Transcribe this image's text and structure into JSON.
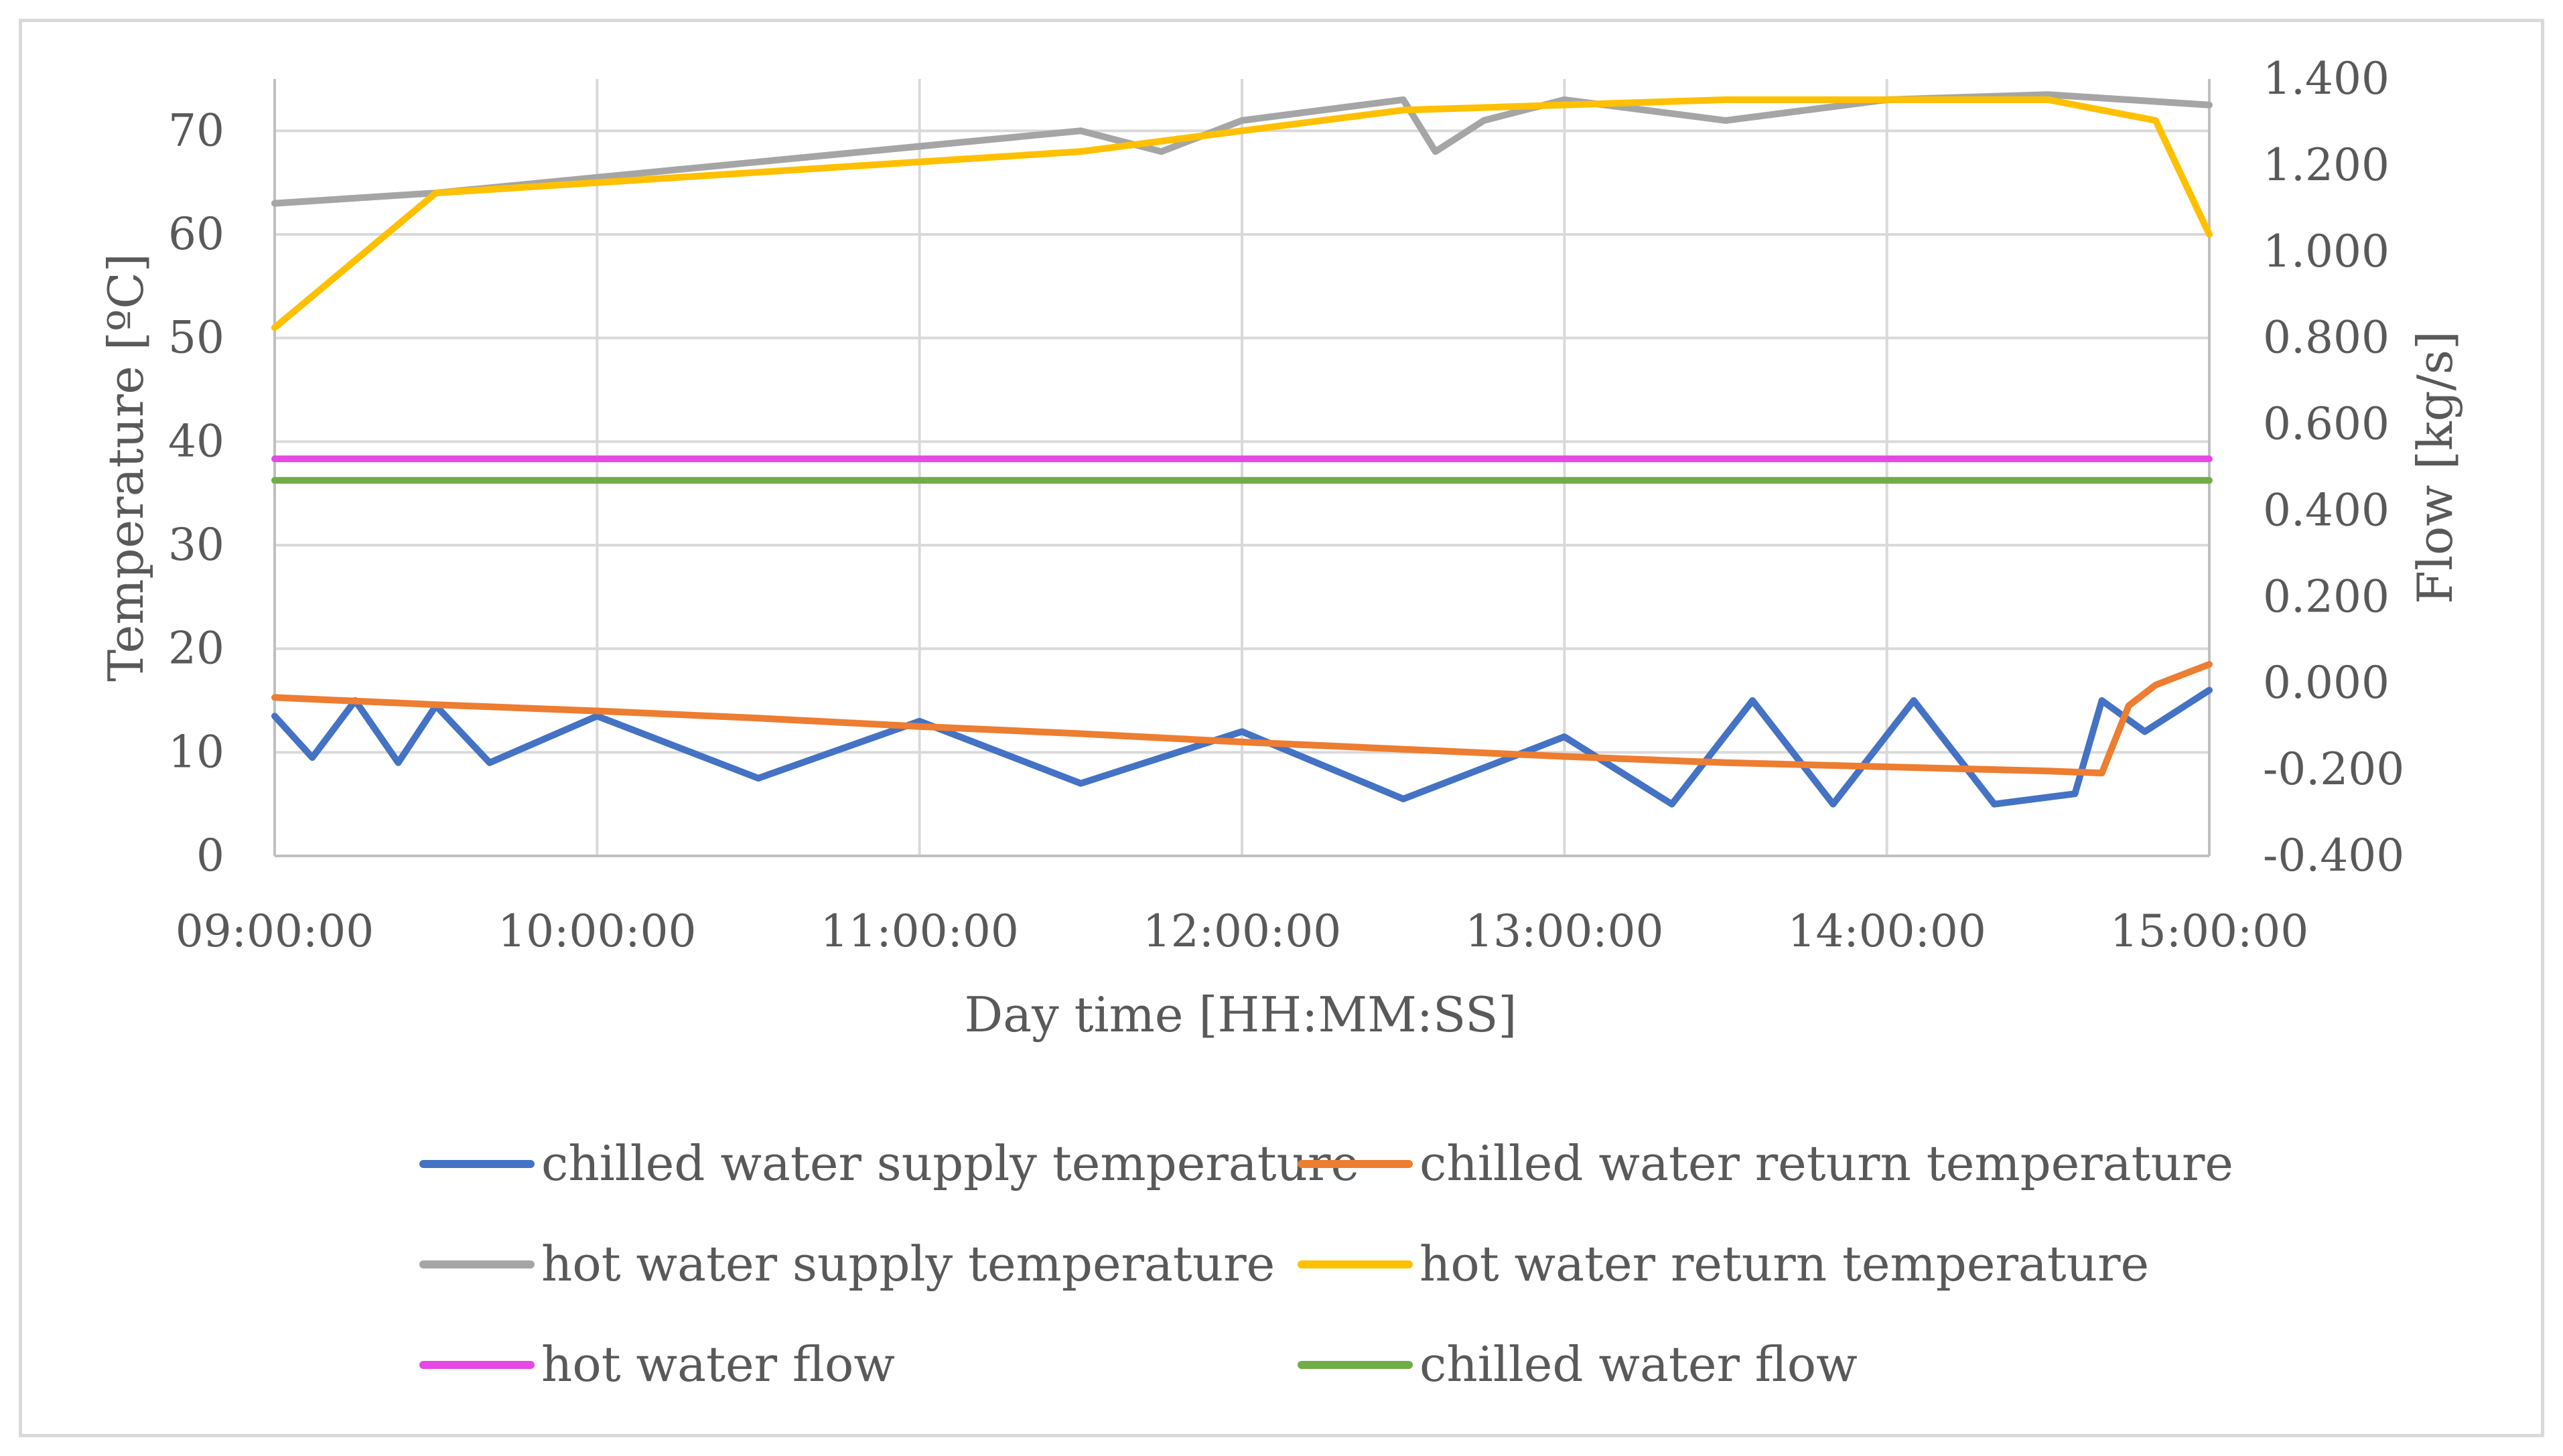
{
  "chart_data": {
    "type": "line",
    "xlabel": "Day time [HH:MM:SS]",
    "ylabel_left": "Temperature [ºC]",
    "ylabel_right": "Flow [kg/s]",
    "xlim": [
      "09:00:00",
      "15:00:00"
    ],
    "ylim_left": [
      0,
      75
    ],
    "ylim_right": [
      -0.4,
      1.4
    ],
    "x_ticks": [
      "09:00:00",
      "10:00:00",
      "11:00:00",
      "12:00:00",
      "13:00:00",
      "14:00:00",
      "15:00:00"
    ],
    "y_ticks_left": [
      "0",
      "10",
      "20",
      "30",
      "40",
      "50",
      "60",
      "70"
    ],
    "y_ticks_right": [
      "-0.400",
      "-0.200",
      "0.000",
      "0.200",
      "0.400",
      "0.600",
      "0.800",
      "1.000",
      "1.200",
      "1.400"
    ],
    "grid": true,
    "legend_position": "bottom",
    "series": [
      {
        "name": "chilled water supply temperature",
        "color": "#4472C4",
        "axis": "left",
        "x": [
          "09:00:00",
          "09:07:00",
          "09:15:00",
          "09:23:00",
          "09:30:00",
          "09:40:00",
          "10:00:00",
          "10:30:00",
          "11:00:00",
          "11:30:00",
          "12:00:00",
          "12:30:00",
          "13:00:00",
          "13:20:00",
          "13:35:00",
          "13:50:00",
          "14:05:00",
          "14:20:00",
          "14:35:00",
          "14:40:00",
          "14:48:00",
          "15:00:00"
        ],
        "y": [
          13.5,
          9.5,
          15,
          9,
          14.5,
          9,
          13.5,
          7.5,
          13,
          7,
          12,
          5.5,
          11.5,
          5,
          15,
          5,
          15,
          5,
          6,
          15,
          12,
          16
        ]
      },
      {
        "name": "chilled water return temperature",
        "color": "#ED7D31",
        "axis": "left",
        "x": [
          "09:00:00",
          "09:30:00",
          "10:00:00",
          "10:30:00",
          "11:00:00",
          "11:30:00",
          "12:00:00",
          "12:30:00",
          "13:00:00",
          "13:30:00",
          "14:00:00",
          "14:30:00",
          "14:40:00",
          "14:45:00",
          "14:50:00",
          "15:00:00"
        ],
        "y": [
          15.3,
          14.6,
          14,
          13.3,
          12.5,
          11.8,
          11,
          10.3,
          9.6,
          9,
          8.6,
          8.2,
          8,
          14.5,
          16.5,
          18.5
        ]
      },
      {
        "name": "hot water supply temperature",
        "color": "#A5A5A5",
        "axis": "left",
        "x": [
          "09:00:00",
          "09:30:00",
          "10:00:00",
          "10:30:00",
          "11:00:00",
          "11:30:00",
          "11:45:00",
          "12:00:00",
          "12:30:00",
          "12:36:00",
          "12:45:00",
          "13:00:00",
          "13:30:00",
          "14:00:00",
          "14:30:00",
          "15:00:00"
        ],
        "y": [
          63,
          64,
          65.5,
          67,
          68.5,
          70,
          68,
          71,
          73,
          68,
          71,
          73,
          71,
          73,
          73.5,
          72.5
        ]
      },
      {
        "name": "hot water return temperature",
        "color": "#FFC000",
        "axis": "left",
        "x": [
          "09:00:00",
          "09:30:00",
          "10:00:00",
          "10:30:00",
          "11:00:00",
          "11:30:00",
          "12:00:00",
          "12:30:00",
          "13:00:00",
          "13:30:00",
          "14:00:00",
          "14:30:00",
          "14:50:00",
          "15:00:00"
        ],
        "y": [
          51,
          64,
          65,
          66,
          67,
          68,
          70,
          72,
          72.5,
          73,
          73,
          73,
          71,
          60
        ]
      },
      {
        "name": "hot water flow",
        "color": "#E548E5",
        "axis": "right",
        "x": [
          "09:00:00",
          "09:30:00",
          "10:00:00",
          "10:30:00",
          "11:00:00",
          "11:30:00",
          "12:00:00",
          "12:30:00",
          "13:00:00",
          "13:30:00",
          "14:00:00",
          "14:30:00",
          "15:00:00"
        ],
        "y": [
          0.52,
          0.52,
          0.52,
          0.52,
          0.52,
          0.52,
          0.52,
          0.52,
          0.52,
          0.52,
          0.52,
          0.52,
          0.52
        ]
      },
      {
        "name": "chilled water flow",
        "color": "#70AD47",
        "axis": "right",
        "x": [
          "09:00:00",
          "09:30:00",
          "10:00:00",
          "10:30:00",
          "11:00:00",
          "11:30:00",
          "12:00:00",
          "12:30:00",
          "13:00:00",
          "13:30:00",
          "14:00:00",
          "14:30:00",
          "15:00:00"
        ],
        "y": [
          0.47,
          0.47,
          0.47,
          0.47,
          0.47,
          0.47,
          0.47,
          0.47,
          0.47,
          0.47,
          0.47,
          0.47,
          0.47
        ]
      }
    ]
  }
}
